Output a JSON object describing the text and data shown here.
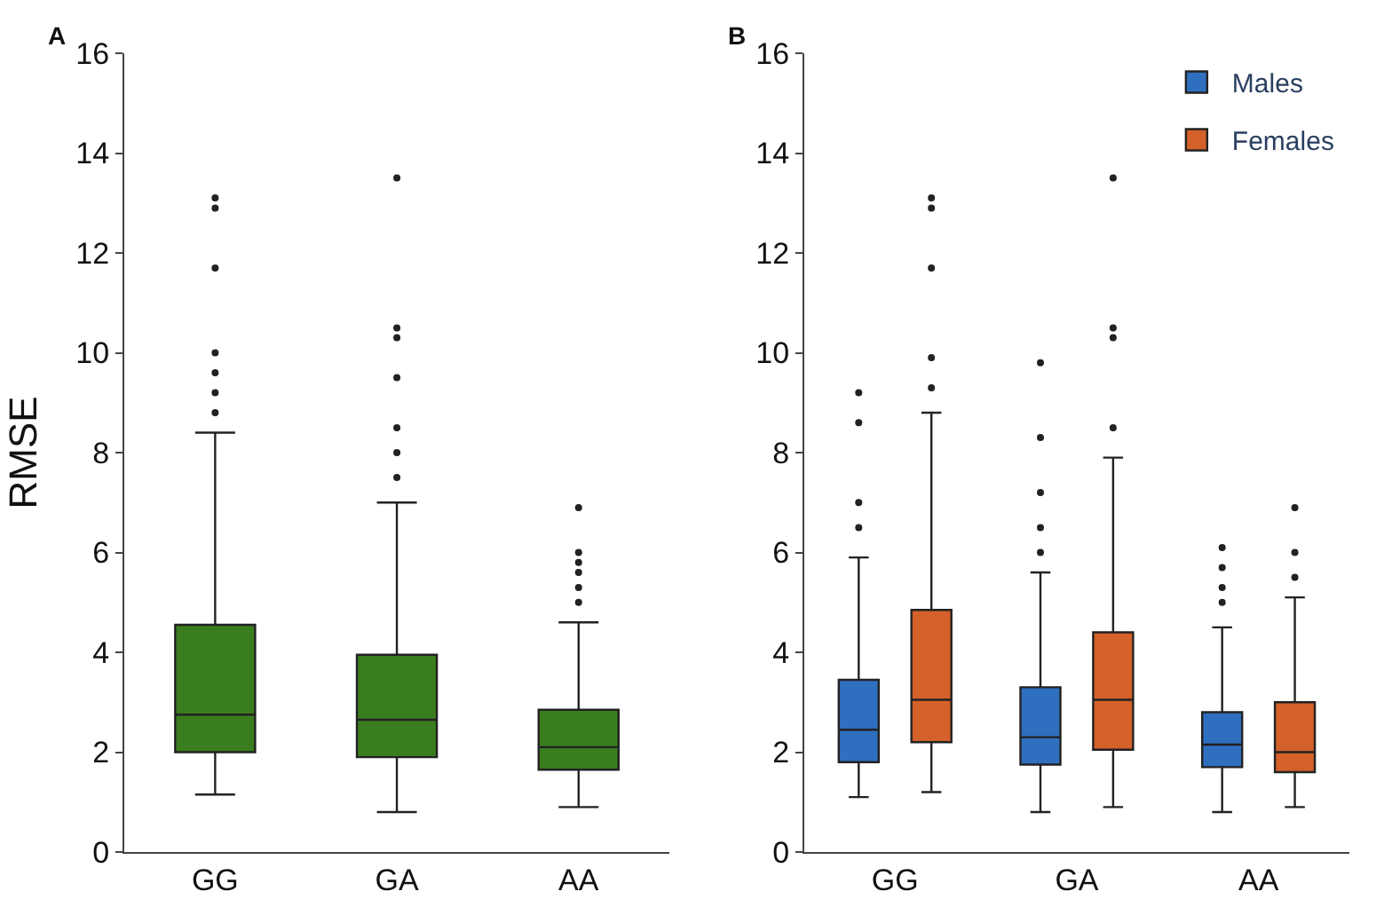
{
  "chart_data": [
    {
      "type": "box",
      "title": "A",
      "ylabel": "RMSE",
      "categories": [
        "GG",
        "GA",
        "AA"
      ],
      "ylim": [
        0,
        16
      ],
      "yticks": [
        0,
        2,
        4,
        6,
        8,
        10,
        12,
        14,
        16
      ],
      "legend": false,
      "series": [
        {
          "color": "#3a7d1e",
          "boxes": [
            {
              "low": 1.15,
              "q1": 2.0,
              "median": 2.75,
              "q3": 4.55,
              "high": 8.4,
              "outliers": [
                8.8,
                9.2,
                9.6,
                10.0,
                11.7,
                12.9,
                13.1
              ]
            },
            {
              "low": 0.8,
              "q1": 1.9,
              "median": 2.65,
              "q3": 3.95,
              "high": 7.0,
              "outliers": [
                7.5,
                8.0,
                8.5,
                9.5,
                10.3,
                10.5,
                13.5
              ]
            },
            {
              "low": 0.9,
              "q1": 1.65,
              "median": 2.1,
              "q3": 2.85,
              "high": 4.6,
              "outliers": [
                5.0,
                5.3,
                5.6,
                5.8,
                6.0,
                6.9
              ]
            }
          ]
        }
      ]
    },
    {
      "type": "box",
      "title": "B",
      "categories": [
        "GG",
        "GA",
        "AA"
      ],
      "ylim": [
        0,
        16
      ],
      "yticks": [
        0,
        2,
        4,
        6,
        8,
        10,
        12,
        14,
        16
      ],
      "legend": "top right",
      "series": [
        {
          "name": "Males",
          "color": "#2f6fbf",
          "boxes": [
            {
              "low": 1.1,
              "q1": 1.8,
              "median": 2.45,
              "q3": 3.45,
              "high": 5.9,
              "outliers": [
                6.5,
                7.0,
                8.6,
                9.2
              ]
            },
            {
              "low": 0.8,
              "q1": 1.75,
              "median": 2.3,
              "q3": 3.3,
              "high": 5.6,
              "outliers": [
                6.0,
                6.5,
                7.2,
                8.3,
                9.8
              ]
            },
            {
              "low": 0.8,
              "q1": 1.7,
              "median": 2.15,
              "q3": 2.8,
              "high": 4.5,
              "outliers": [
                5.0,
                5.3,
                5.7,
                6.1
              ]
            }
          ]
        },
        {
          "name": "Females",
          "color": "#d4602a",
          "boxes": [
            {
              "low": 1.2,
              "q1": 2.2,
              "median": 3.05,
              "q3": 4.85,
              "high": 8.8,
              "outliers": [
                9.3,
                9.9,
                11.7,
                12.9,
                13.1
              ]
            },
            {
              "low": 0.9,
              "q1": 2.05,
              "median": 3.05,
              "q3": 4.4,
              "high": 7.9,
              "outliers": [
                8.5,
                10.3,
                10.5,
                13.5
              ]
            },
            {
              "low": 0.9,
              "q1": 1.6,
              "median": 2.0,
              "q3": 3.0,
              "high": 5.1,
              "outliers": [
                5.5,
                6.0,
                6.9
              ]
            }
          ]
        }
      ]
    }
  ]
}
